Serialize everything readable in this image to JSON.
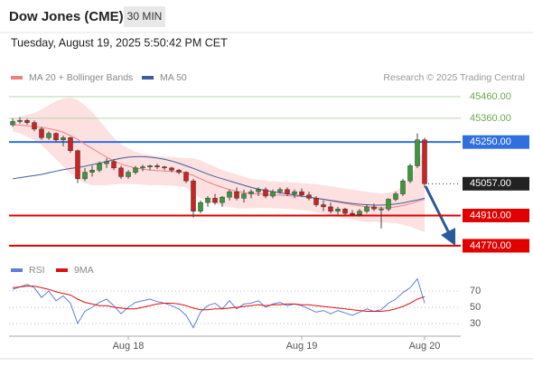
{
  "chart_data": {
    "type": "candlestick",
    "title": "Dow Jones (CME)",
    "timeframe": "30 MIN",
    "timestamp": "Tuesday, August 19, 2025 5:50:42 PM CET",
    "source": "Research © 2025 Trading Central",
    "categories": [
      null,
      null,
      null,
      null,
      null,
      null,
      null,
      null,
      null,
      null,
      null,
      null,
      null,
      null,
      null,
      null,
      "Aug 18",
      null,
      null,
      null,
      null,
      null,
      null,
      null,
      null,
      null,
      null,
      null,
      null,
      null,
      null,
      null,
      null,
      null,
      null,
      null,
      null,
      null,
      null,
      null,
      "Aug 19",
      null,
      null,
      null,
      null,
      null,
      null,
      null,
      null,
      null,
      null,
      null,
      null,
      null,
      null,
      null,
      null,
      "Aug 20"
    ],
    "open": [
      45330,
      45345,
      45350,
      45340,
      45310,
      45270,
      45290,
      45260,
      45270,
      45210,
      45080,
      45110,
      45120,
      45150,
      45160,
      45130,
      45090,
      45110,
      45130,
      45135,
      45140,
      45135,
      45130,
      45120,
      45110,
      45070,
      44930,
      44970,
      44990,
      44970,
      44995,
      45020,
      44990,
      45010,
      45020,
      45030,
      45000,
      45020,
      45030,
      45010,
      45020,
      45005,
      44990,
      44960,
      44950,
      44930,
      44940,
      44920,
      44915,
      44930,
      44950,
      44940,
      44940,
      44985,
      45010,
      45070,
      45140,
      45260
    ],
    "high": [
      45360,
      45365,
      45358,
      45350,
      45320,
      45300,
      45295,
      45280,
      45275,
      45215,
      45130,
      45140,
      45160,
      45175,
      45170,
      45140,
      45120,
      45140,
      45145,
      45145,
      45150,
      45140,
      45135,
      45125,
      45115,
      45080,
      44980,
      45000,
      45010,
      45000,
      45030,
      45040,
      45030,
      45030,
      45040,
      45040,
      45030,
      45040,
      45040,
      45030,
      45035,
      45020,
      45000,
      44980,
      44970,
      44950,
      44945,
      44935,
      44940,
      44960,
      44965,
      44950,
      44990,
      45020,
      45080,
      45150,
      45290,
      45270
    ],
    "low": [
      45320,
      45335,
      45330,
      45300,
      45260,
      45260,
      45250,
      45230,
      45200,
      45060,
      45070,
      45090,
      45110,
      45130,
      45120,
      45080,
      45080,
      45100,
      45115,
      45120,
      45125,
      45120,
      45110,
      45100,
      45060,
      44900,
      44920,
      44950,
      44960,
      44950,
      44980,
      44980,
      44970,
      44990,
      45000,
      44990,
      44990,
      45010,
      45000,
      44990,
      44995,
      44980,
      44950,
      44930,
      44920,
      44915,
      44910,
      44905,
      44905,
      44920,
      44930,
      44850,
      44930,
      44975,
      45000,
      45060,
      45130,
      45040
    ],
    "close": [
      45345,
      45350,
      45340,
      45310,
      45270,
      45290,
      45260,
      45270,
      45210,
      45080,
      45110,
      45120,
      45150,
      45160,
      45130,
      45090,
      45110,
      45130,
      45135,
      45140,
      45135,
      45130,
      45120,
      45110,
      45070,
      44930,
      44970,
      44990,
      44970,
      44995,
      45020,
      44990,
      45010,
      45020,
      45030,
      45000,
      45020,
      45030,
      45010,
      45020,
      45005,
      44990,
      44960,
      44950,
      44930,
      44940,
      44920,
      44915,
      44930,
      44950,
      44940,
      44940,
      44985,
      45010,
      45070,
      45140,
      45260,
      45057
    ],
    "up_color": "#3a9a3a",
    "down_color": "#cc2222",
    "indicators": [
      {
        "name": "MA 20 + Bollinger Bands",
        "color": "#f08080",
        "band_color": "#fde0e0",
        "values": [
          45330,
          45328,
          45325,
          45322,
          45318,
          45312,
          45305,
          45295,
          45280,
          45262,
          45240,
          45220,
          45200,
          45180,
          45162,
          45148,
          45138,
          45130,
          45124,
          45120,
          45118,
          45116,
          45114,
          45112,
          45108,
          45095,
          45080,
          45065,
          45052,
          45040,
          45030,
          45022,
          45016,
          45012,
          45010,
          45008,
          45006,
          45004,
          45002,
          45000,
          44998,
          44995,
          44990,
          44984,
          44978,
          44972,
          44966,
          44960,
          44955,
          44950,
          44948,
          44945,
          44946,
          44950,
          44956,
          44964,
          44975,
          44985
        ],
        "upper": [
          45350,
          45365,
          45375,
          45385,
          45400,
          45420,
          45440,
          45452,
          45455,
          45445,
          45420,
          45390,
          45350,
          45310,
          45270,
          45240,
          45220,
          45205,
          45195,
          45190,
          45185,
          45182,
          45180,
          45178,
          45176,
          45175,
          45165,
          45150,
          45135,
          45120,
          45110,
          45100,
          45090,
          45080,
          45075,
          45070,
          45068,
          45066,
          45064,
          45062,
          45060,
          45058,
          45055,
          45050,
          45045,
          45040,
          45035,
          45030,
          45025,
          45020,
          45015,
          45012,
          45015,
          45025,
          45045,
          45080,
          45160,
          45220
        ],
        "lower": [
          45300,
          45290,
          45275,
          45260,
          45236,
          45204,
          45170,
          45138,
          45105,
          45079,
          45060,
          45050,
          45050,
          45050,
          45054,
          45056,
          45056,
          45055,
          45053,
          45050,
          45051,
          45050,
          45048,
          45046,
          45040,
          45015,
          44990,
          44975,
          44965,
          44955,
          44950,
          44944,
          44942,
          44944,
          44945,
          44946,
          44944,
          44942,
          44940,
          44938,
          44936,
          44932,
          44925,
          44918,
          44911,
          44904,
          44897,
          44890,
          44885,
          44880,
          44881,
          44878,
          44877,
          44875,
          44867,
          44858,
          44845,
          44835
        ]
      },
      {
        "name": "MA 50",
        "color": "#3b5e9c",
        "values": [
          45080,
          45085,
          45090,
          45095,
          45100,
          45108,
          45115,
          45122,
          45128,
          45132,
          45138,
          45145,
          45152,
          45160,
          45168,
          45175,
          45180,
          45182,
          45182,
          45180,
          45176,
          45170,
          45162,
          45152,
          45140,
          45128,
          45115,
          45102,
          45090,
          45080,
          45070,
          45060,
          45050,
          45040,
          45032,
          45025,
          45020,
          45015,
          45010,
          45005,
          45000,
          44995,
          44990,
          44985,
          44980,
          44975,
          44970,
          44966,
          44962,
          44960,
          44958,
          44958,
          44960,
          44963,
          44968,
          44975,
          44982,
          44990
        ]
      }
    ],
    "ylim": [
      44730,
      45510
    ],
    "levels": [
      {
        "value": 45460,
        "label": "45460.00",
        "color": "#6aa84f",
        "line_color": "#b6d7a8",
        "style": "text",
        "line": "solid"
      },
      {
        "value": 45360,
        "label": "45360.00",
        "color": "#6aa84f",
        "line_color": "#b6d7a8",
        "style": "text",
        "line": "solid"
      },
      {
        "value": 45250,
        "label": "45250.00",
        "color": "#2f6fe0",
        "line_color": "#2f6fe0",
        "style": "box",
        "line": "solid"
      },
      {
        "value": 45057,
        "label": "45057.00",
        "color": "#222222",
        "line_color": "#333333",
        "style": "box",
        "line": "dotted"
      },
      {
        "value": 44910,
        "label": "44910.00",
        "color": "#e00000",
        "line_color": "#e00000",
        "style": "box",
        "line": "solid"
      },
      {
        "value": 44770,
        "label": "44770.00",
        "color": "#e00000",
        "line_color": "#e00000",
        "style": "box",
        "line": "solid"
      }
    ],
    "rsi": {
      "ylim": [
        20,
        100
      ],
      "yticks": [
        70,
        50,
        30
      ],
      "series": [
        {
          "name": "RSI",
          "color": "#5b7fd6",
          "values": [
            72,
            75,
            78,
            74,
            62,
            70,
            58,
            64,
            55,
            30,
            45,
            50,
            56,
            60,
            52,
            42,
            50,
            56,
            58,
            60,
            57,
            55,
            52,
            48,
            40,
            25,
            44,
            52,
            55,
            48,
            58,
            48,
            54,
            55,
            58,
            50,
            54,
            56,
            52,
            54,
            52,
            48,
            44,
            46,
            42,
            46,
            43,
            40,
            44,
            48,
            45,
            47,
            55,
            60,
            68,
            74,
            85,
            55
          ]
        },
        {
          "name": "9MA",
          "color": "#e01010",
          "values": [
            74,
            75,
            76,
            76,
            74,
            72,
            69,
            67,
            65,
            60,
            56,
            54,
            52,
            52,
            50,
            49,
            48,
            48,
            50,
            52,
            54,
            55,
            55,
            54,
            52,
            49,
            47,
            47,
            48,
            48,
            49,
            50,
            51,
            52,
            53,
            52,
            53,
            53,
            54,
            54,
            53,
            53,
            52,
            51,
            50,
            49,
            48,
            47,
            46,
            45,
            45,
            45,
            46,
            48,
            51,
            55,
            60,
            63
          ]
        }
      ]
    }
  }
}
